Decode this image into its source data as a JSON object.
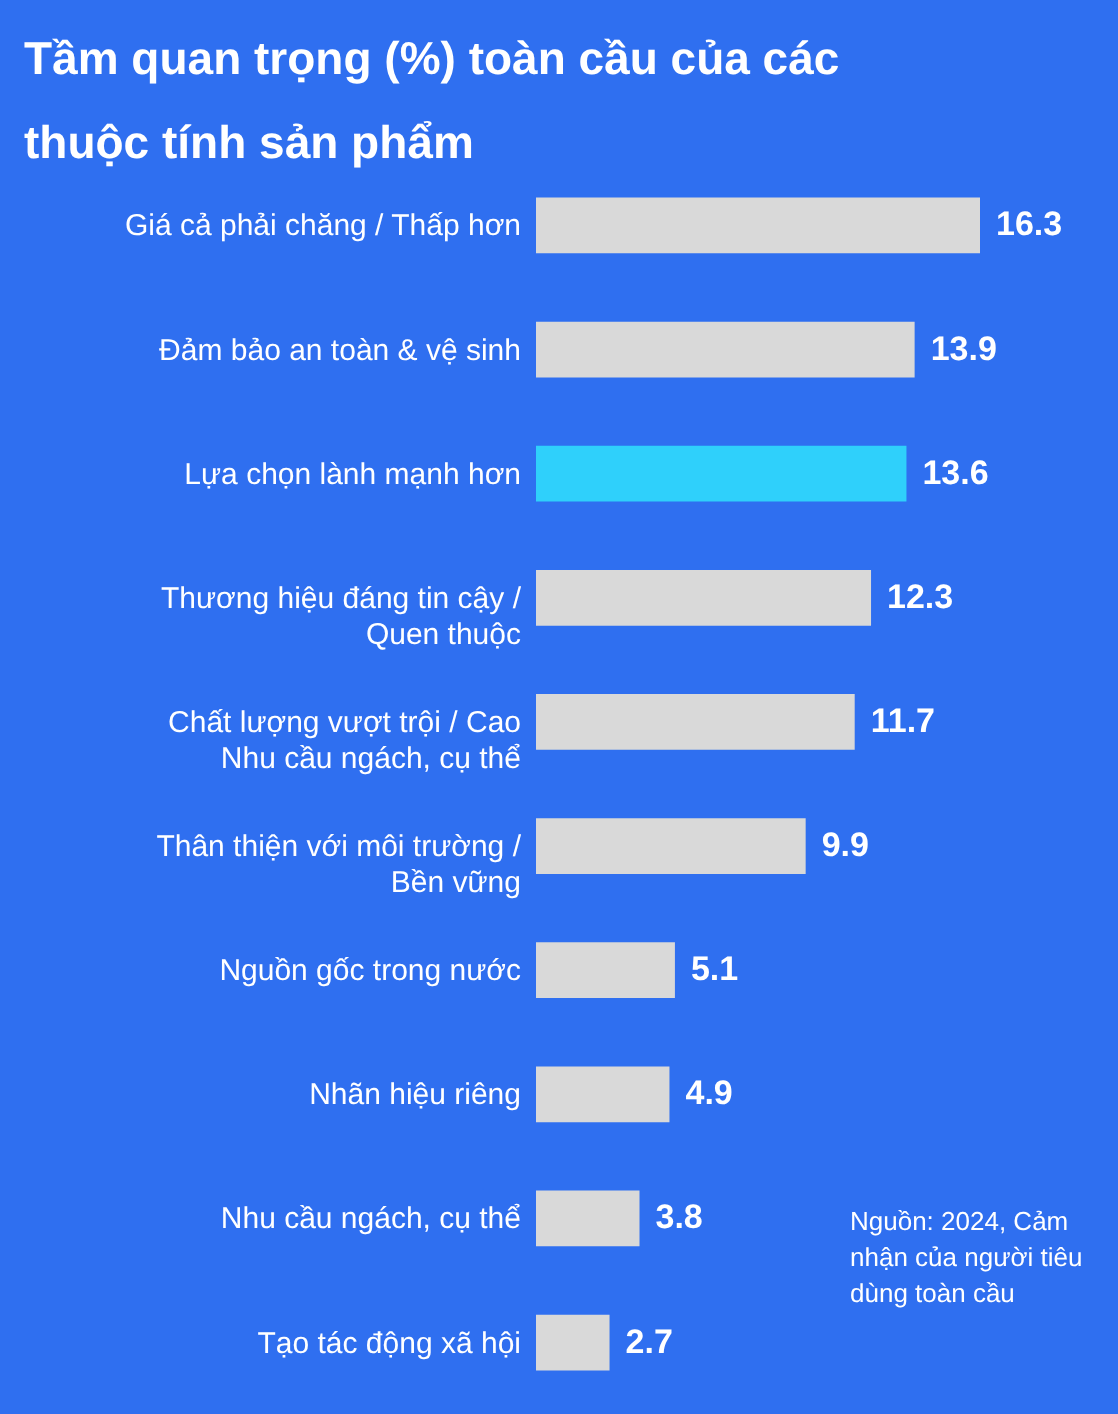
{
  "chart_data": {
    "type": "bar",
    "orientation": "horizontal",
    "title": "Tầm quan trọng (%) toàn cầu của các thuộc tính sản phẩm",
    "categories": [
      "Giá cả phải chăng / Thấp hơn",
      "Đảm bảo an toàn & vệ sinh",
      "Lựa chọn lành mạnh hơn",
      "Thương hiệu đáng tin cậy /\nQuen thuộc",
      "Chất lượng vượt trội / Cao\nNhu cầu ngách, cụ thể",
      "Thân thiện với môi trường /\nBền vững",
      "Nguồn gốc trong nước",
      "Nhãn hiệu riêng",
      "Nhu cầu ngách, cụ thể",
      "Tạo tác động xã hội"
    ],
    "values": [
      16.3,
      13.9,
      13.6,
      12.3,
      11.7,
      9.9,
      5.1,
      4.9,
      3.8,
      2.7
    ],
    "colors": [
      "#d9d9d9",
      "#d9d9d9",
      "#2fd0fb",
      "#d9d9d9",
      "#d9d9d9",
      "#d9d9d9",
      "#d9d9d9",
      "#d9d9d9",
      "#d9d9d9",
      "#d9d9d9"
    ],
    "data_labels": true,
    "annotations": [
      "Nguồn: 2024, Cảm nhận của người tiêu dùng toàn cầu"
    ]
  }
}
